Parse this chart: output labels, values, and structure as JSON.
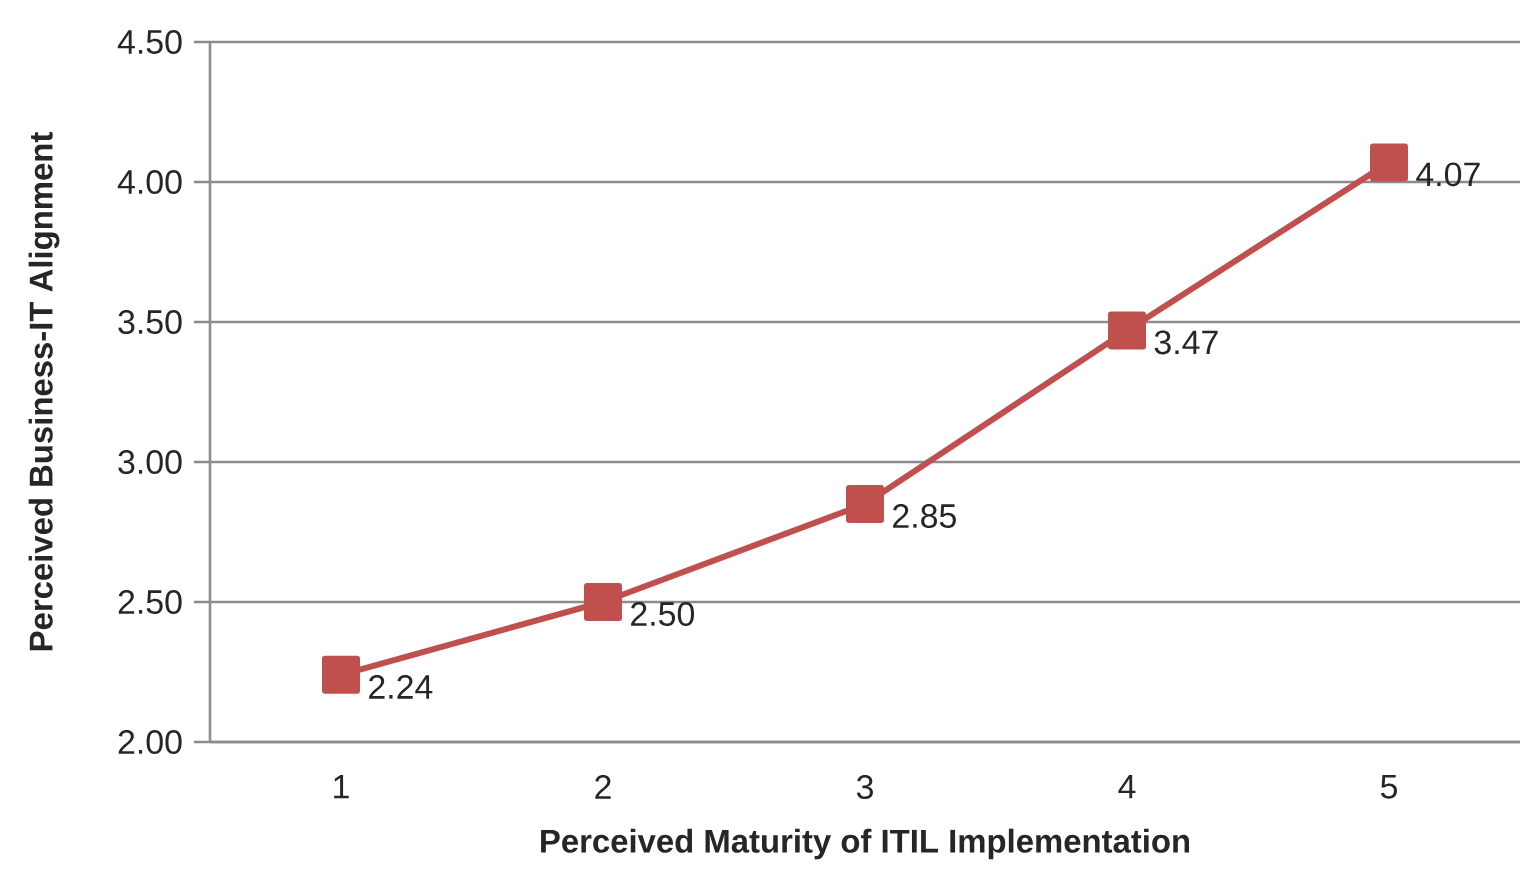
{
  "chart_data": {
    "type": "line",
    "xlabel": "Perceived Maturity of ITIL Implementation",
    "ylabel": "Perceived Business-IT Alignment",
    "categories": [
      "1",
      "2",
      "3",
      "4",
      "5"
    ],
    "series": [
      {
        "color": "#c0504d",
        "values": [
          2.24,
          2.5,
          2.85,
          3.47,
          4.07
        ],
        "value_labels": [
          "2.24",
          "2.50",
          "2.85",
          "3.47",
          "4.07"
        ]
      }
    ],
    "ylim": [
      2,
      4.5
    ],
    "yticks": [
      {
        "value": 2,
        "label": "2.00"
      },
      {
        "value": 2.5,
        "label": "2.50"
      },
      {
        "value": 3,
        "label": "3.00"
      },
      {
        "value": 3.5,
        "label": "3.50"
      },
      {
        "value": 4,
        "label": "4.00"
      },
      {
        "value": 4.5,
        "label": "4.50"
      }
    ],
    "grid": "y",
    "marker": "square",
    "line_style": "solid"
  }
}
